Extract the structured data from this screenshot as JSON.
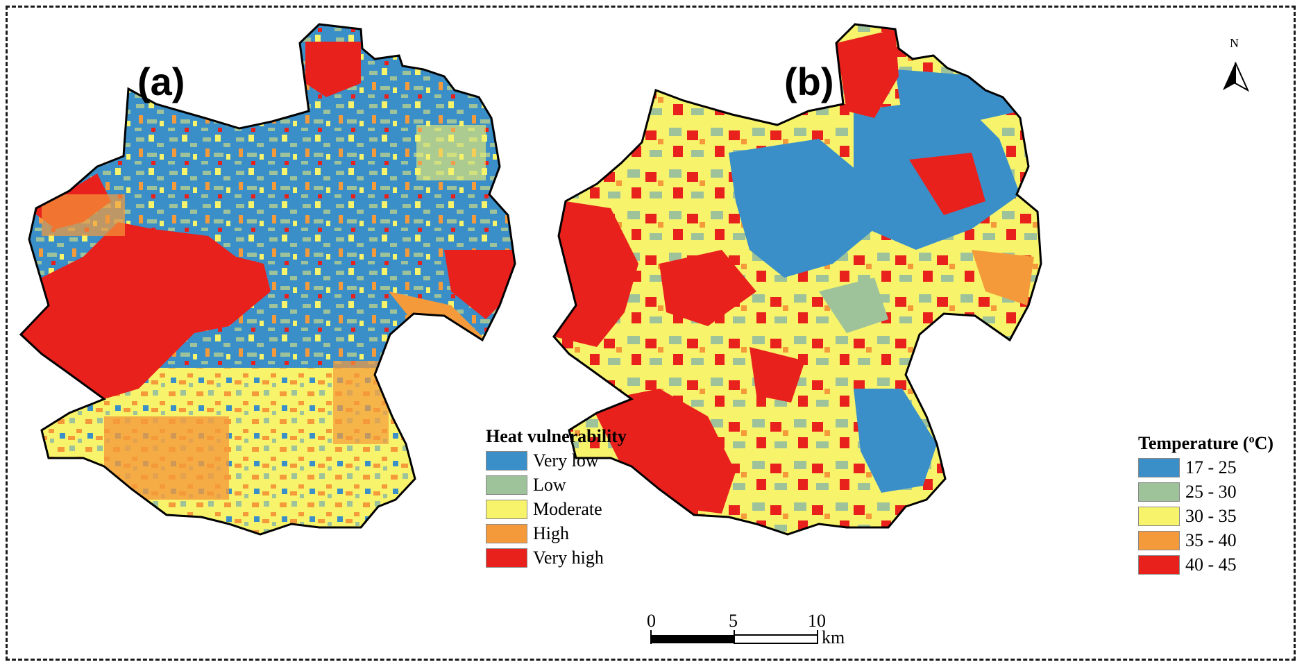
{
  "panels": [
    {
      "id": "a",
      "label": "(a)"
    },
    {
      "id": "b",
      "label": "(b)"
    }
  ],
  "legend_a": {
    "title": "Heat vulnerability",
    "items": [
      {
        "label": "Very low",
        "color": "#3a8fc9"
      },
      {
        "label": "Low",
        "color": "#9ec39b"
      },
      {
        "label": "Moderate",
        "color": "#f7f46b"
      },
      {
        "label": "High",
        "color": "#f59a3b"
      },
      {
        "label": "Very high",
        "color": "#e8211d"
      }
    ]
  },
  "legend_b": {
    "title_prefix": "Temperature (",
    "title_sup": "o",
    "title_suffix": "C)",
    "items": [
      {
        "label": "17 - 25",
        "color": "#3a8fc9"
      },
      {
        "label": "25 - 30",
        "color": "#9ec39b"
      },
      {
        "label": "30 - 35",
        "color": "#f7f46b"
      },
      {
        "label": "35 - 40",
        "color": "#f59a3b"
      },
      {
        "label": "40 - 45",
        "color": "#e8211d"
      }
    ]
  },
  "scale_bar": {
    "ticks": [
      "0",
      "5",
      "10"
    ],
    "unit": "km"
  },
  "north_arrow": {
    "label": "N"
  }
}
